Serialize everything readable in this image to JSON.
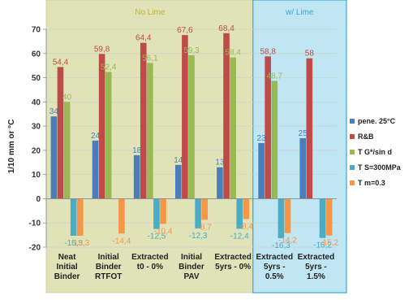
{
  "chart_data": {
    "type": "bar",
    "ylabel": "1/10 mm or °C",
    "ylim": [
      -20,
      70
    ],
    "ytick_step": 10,
    "grid": true,
    "legend_position": "right",
    "categories": [
      [
        "Neat",
        "Initial",
        "Binder"
      ],
      [
        "Initial",
        "Binder",
        "RTFOT"
      ],
      [
        "Extracted",
        "t0 - 0%"
      ],
      [
        "Initial",
        "Binder",
        "PAV"
      ],
      [
        "Extracted",
        "5yrs - 0%"
      ],
      [
        "Extracted",
        "5yrs -",
        "0.5%"
      ],
      [
        "Extracted",
        "5yrs -",
        "1.5%"
      ]
    ],
    "groups": [
      {
        "label": "No Lime",
        "start": 0,
        "end": 4,
        "fill": "#e0e3b8",
        "stroke": "#c9cd9a",
        "text_color": "#b5b83a"
      },
      {
        "label": "w/ Lime",
        "start": 5,
        "end": 6,
        "fill": "#bfe6f2",
        "stroke": "#3aa7d6",
        "text_color": "#3aa7d6"
      }
    ],
    "series": [
      {
        "name": "pene. 25°C",
        "color": "#4a7ebb",
        "values": [
          34,
          24,
          18,
          14,
          13,
          23,
          25
        ],
        "labels": [
          "34",
          "24",
          "18",
          "14",
          "13",
          "23",
          "25"
        ]
      },
      {
        "name": "R&B",
        "color": "#be4b48",
        "values": [
          54.4,
          59.8,
          64.4,
          67.6,
          68.4,
          58.8,
          58
        ],
        "labels": [
          "54,4",
          "59,8",
          "64,4",
          "67,6",
          "68,4",
          "58,8",
          "58"
        ]
      },
      {
        "name": "T G*/sin d",
        "color": "#98b954",
        "values": [
          40,
          52.4,
          56.1,
          59.3,
          58.4,
          48.7,
          null
        ],
        "labels": [
          "40",
          "52,4",
          "56,1",
          "59,3",
          "58,4",
          "48,7",
          ""
        ]
      },
      {
        "name": "T S=300MPa",
        "color": "#4bacc6",
        "values": [
          -15.3,
          null,
          -12.5,
          -12.3,
          -12.4,
          -16.3,
          -16.2
        ],
        "labels": [
          "-15,3",
          "",
          "-12,5",
          "-12,3",
          "-12,4",
          "-16,3",
          "-16,2"
        ]
      },
      {
        "name": "T m=0.3",
        "color": "#f79646",
        "values": [
          -15.3,
          -14.4,
          -10.4,
          -8.7,
          -8.4,
          -14.2,
          -15.2
        ],
        "labels": [
          "-15,3",
          "-14,4",
          "-10,4",
          "-8,7",
          "-8,4",
          "-14,2",
          "-15,2"
        ]
      }
    ]
  }
}
